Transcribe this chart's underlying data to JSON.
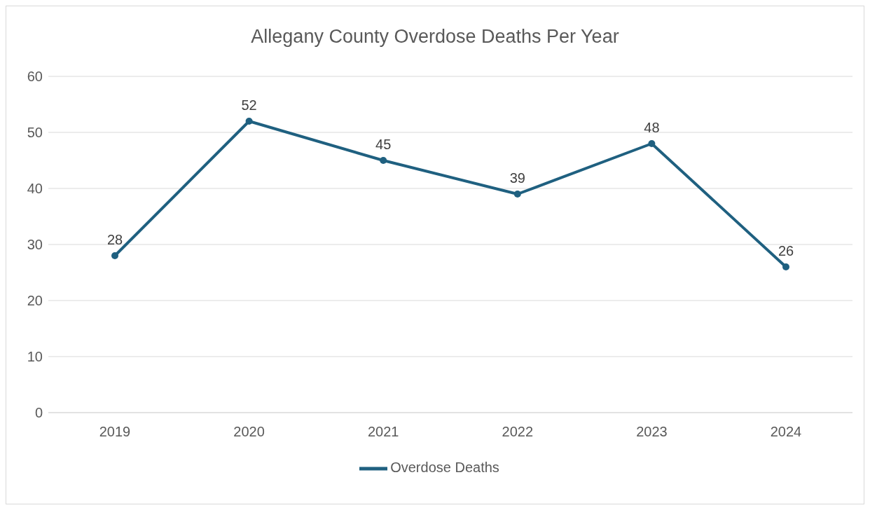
{
  "chart_data": {
    "type": "line",
    "title": "Allegany County Overdose Deaths Per Year",
    "categories": [
      "2019",
      "2020",
      "2021",
      "2022",
      "2023",
      "2024"
    ],
    "series": [
      {
        "name": "Overdose Deaths",
        "color": "#1f6080",
        "values": [
          28,
          52,
          45,
          39,
          48,
          26
        ]
      }
    ],
    "ylim": [
      0,
      60
    ],
    "yticks": [
      0,
      10,
      20,
      30,
      40,
      50,
      60
    ],
    "grid": "y",
    "legend": "bottom",
    "marker": "circle",
    "line_style": "solid",
    "data_labels": true
  }
}
